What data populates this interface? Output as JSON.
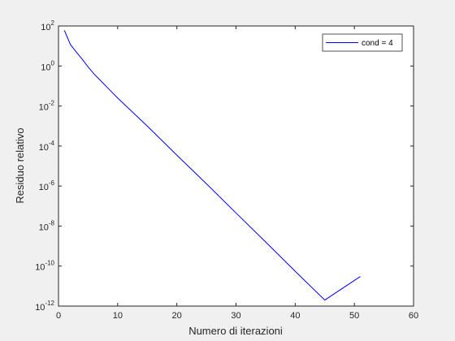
{
  "chart_data": {
    "type": "line",
    "xlabel": "Numero di iterazioni",
    "ylabel": "Residuo relativo",
    "xlim": [
      0,
      60
    ],
    "ylim": [
      1e-12,
      100.0
    ],
    "yscale": "log",
    "xticks": [
      "0",
      "10",
      "20",
      "30",
      "40",
      "50",
      "60"
    ],
    "yticks": [
      {
        "base": "10",
        "exp": "2"
      },
      {
        "base": "10",
        "exp": "0"
      },
      {
        "base": "10",
        "exp": "-2"
      },
      {
        "base": "10",
        "exp": "-4"
      },
      {
        "base": "10",
        "exp": "-6"
      },
      {
        "base": "10",
        "exp": "-8"
      },
      {
        "base": "10",
        "exp": "-10"
      },
      {
        "base": "10",
        "exp": "-12"
      }
    ],
    "grid": false,
    "legend_position": "top-right",
    "series": [
      {
        "name": "cond = 4",
        "color": "#0000ff",
        "x": [
          1,
          2,
          3,
          4,
          5,
          6,
          8,
          10,
          15,
          20,
          25,
          30,
          35,
          40,
          45,
          51
        ],
        "y": [
          60,
          12,
          5,
          2.2,
          0.9,
          0.4,
          0.1,
          0.025,
          0.001,
          3.5e-05,
          1.3e-06,
          4.5e-08,
          1.6e-09,
          5.5e-11,
          2e-12,
          3e-11
        ]
      }
    ]
  }
}
